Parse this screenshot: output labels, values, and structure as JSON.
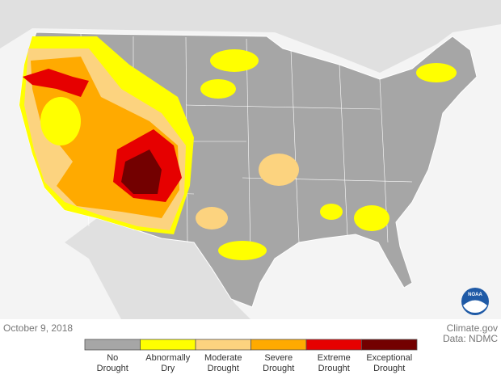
{
  "date": "October 9, 2018",
  "credit": "Climate.gov",
  "source": "Data: NDMC",
  "logo": "NOAA",
  "legend": [
    {
      "label": [
        "No",
        "Drought"
      ],
      "color": "#a6a6a6"
    },
    {
      "label": [
        "Abnormally",
        "Dry"
      ],
      "color": "#ffff00"
    },
    {
      "label": [
        "Moderate",
        "Drought"
      ],
      "color": "#fcd37f"
    },
    {
      "label": [
        "Severe",
        "Drought"
      ],
      "color": "#ffaa00"
    },
    {
      "label": [
        "Extreme",
        "Drought"
      ],
      "color": "#e60000"
    },
    {
      "label": [
        "Exceptional",
        "Drought"
      ],
      "color": "#730000"
    }
  ]
}
